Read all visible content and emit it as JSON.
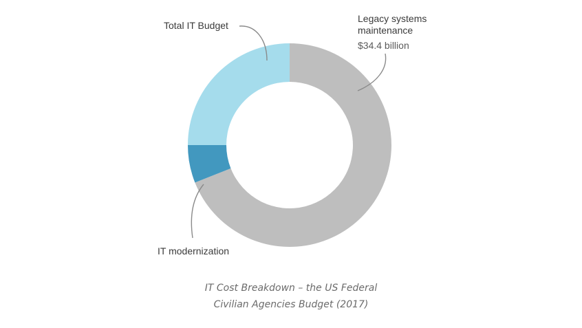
{
  "chart_data": {
    "type": "pie",
    "style": "donut",
    "slices": [
      {
        "label": "Legacy systems maintenance",
        "value_label": "$34.4 billion",
        "share": 0.69,
        "color": "#bebebe"
      },
      {
        "label": "IT modernization",
        "share": 0.06,
        "color": "#4298bf"
      },
      {
        "label": "Total IT Budget",
        "share": 0.25,
        "color": "#a5dcec"
      }
    ],
    "caption": {
      "line1": "IT Cost Breakdown – the US Federal",
      "line2": "Civilian Agencies Budget (2017)"
    },
    "labels": {
      "legacy_line1": "Legacy systems",
      "legacy_line2": "maintenance",
      "legacy_value": "$34.4 billion",
      "modernization": "IT modernization",
      "total": "Total IT Budget"
    }
  }
}
